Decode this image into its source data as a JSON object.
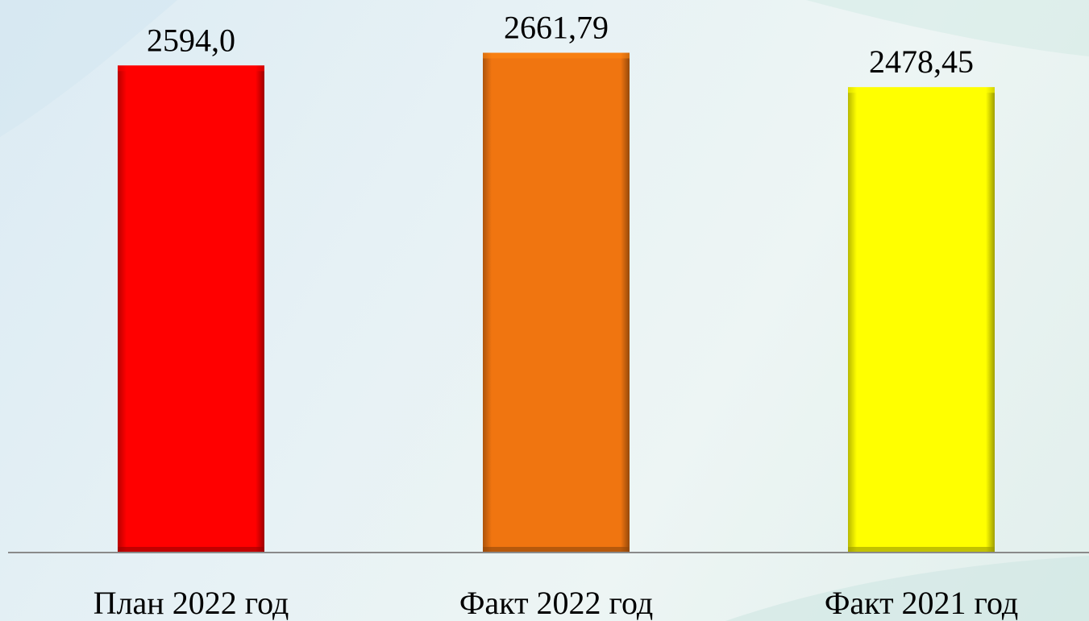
{
  "chart_data": {
    "type": "bar",
    "categories": [
      "План 2022 год",
      "Факт 2022 год",
      "Факт 2021 год"
    ],
    "values": [
      2594.0,
      2661.79,
      2478.45
    ],
    "value_labels": [
      "2594,0",
      "2661,79",
      "2478,45"
    ],
    "colors": [
      "#ff0000",
      "#f07510",
      "#ffff00"
    ],
    "title": "",
    "xlabel": "",
    "ylabel": "",
    "grid": false,
    "legend": "none"
  },
  "colors": {
    "axis": "#8a8a8a",
    "background": "#e6f1f5"
  }
}
